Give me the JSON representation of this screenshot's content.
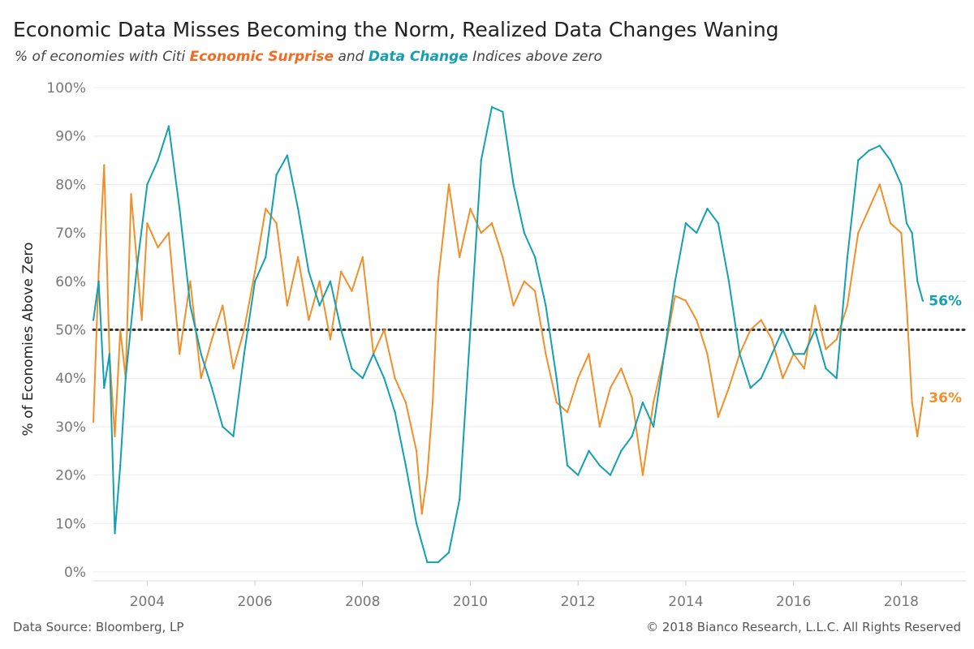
{
  "title": "Economic Data Misses Becoming the Norm, Realized Data Changes Waning",
  "subtitle": {
    "prefix": "% of economies with Citi",
    "series1": "Economic Surprise",
    "middle": "and",
    "series2": "Data Change",
    "suffix": "Indices above zero"
  },
  "footer": {
    "source": "Data Source: Bloomberg, LP",
    "copyright": "© 2018 Bianco Research, L.L.C. All Rights Reserved"
  },
  "colors": {
    "economic_surprise": "#f0902a",
    "data_change": "#14a0b0",
    "subtitle_surprise": "#f26b21",
    "reference_line": "#333333"
  },
  "chart_data": {
    "type": "line",
    "title": "Economic Data Misses Becoming the Norm, Realized Data Changes Waning",
    "xlabel": "",
    "ylabel": "% of Economies Above Zero",
    "xlim": [
      2003.0,
      2019.2
    ],
    "ylim": [
      0,
      100
    ],
    "x_ticks": [
      2004,
      2006,
      2008,
      2010,
      2012,
      2014,
      2016,
      2018
    ],
    "x_tick_labels": [
      "2004",
      "2006",
      "2008",
      "2010",
      "2012",
      "2014",
      "2016",
      "2018"
    ],
    "y_ticks": [
      0,
      10,
      20,
      30,
      40,
      50,
      60,
      70,
      80,
      90,
      100
    ],
    "y_tick_labels": [
      "0%",
      "10%",
      "20%",
      "30%",
      "40%",
      "50%",
      "60%",
      "70%",
      "80%",
      "90%",
      "100%"
    ],
    "reference_line": {
      "y": 50,
      "style": "dotted"
    },
    "grid": "horizontal",
    "end_labels": [
      {
        "series": "Data Change",
        "text": "56%"
      },
      {
        "series": "Economic Surprise",
        "text": "36%"
      }
    ],
    "series": [
      {
        "name": "Economic Surprise",
        "color": "#f0902a",
        "x": [
          2003.0,
          2003.1,
          2003.2,
          2003.3,
          2003.4,
          2003.5,
          2003.6,
          2003.7,
          2003.8,
          2003.9,
          2004.0,
          2004.2,
          2004.4,
          2004.6,
          2004.8,
          2005.0,
          2005.2,
          2005.4,
          2005.6,
          2005.8,
          2006.0,
          2006.2,
          2006.4,
          2006.6,
          2006.8,
          2007.0,
          2007.2,
          2007.4,
          2007.6,
          2007.8,
          2008.0,
          2008.2,
          2008.4,
          2008.6,
          2008.8,
          2009.0,
          2009.1,
          2009.2,
          2009.3,
          2009.4,
          2009.5,
          2009.6,
          2009.8,
          2010.0,
          2010.2,
          2010.4,
          2010.6,
          2010.8,
          2011.0,
          2011.2,
          2011.4,
          2011.6,
          2011.8,
          2012.0,
          2012.2,
          2012.4,
          2012.6,
          2012.8,
          2013.0,
          2013.2,
          2013.4,
          2013.6,
          2013.8,
          2014.0,
          2014.2,
          2014.4,
          2014.6,
          2014.8,
          2015.0,
          2015.2,
          2015.4,
          2015.6,
          2015.8,
          2016.0,
          2016.2,
          2016.4,
          2016.6,
          2016.8,
          2017.0,
          2017.2,
          2017.4,
          2017.6,
          2017.8,
          2018.0,
          2018.1,
          2018.2,
          2018.3,
          2018.4
        ],
        "values": [
          31,
          62,
          84,
          45,
          28,
          50,
          40,
          78,
          65,
          52,
          72,
          67,
          70,
          45,
          60,
          40,
          48,
          55,
          42,
          50,
          62,
          75,
          72,
          55,
          65,
          52,
          60,
          48,
          62,
          58,
          65,
          45,
          50,
          40,
          35,
          25,
          12,
          20,
          35,
          60,
          70,
          80,
          65,
          75,
          70,
          72,
          65,
          55,
          60,
          58,
          45,
          35,
          33,
          40,
          45,
          30,
          38,
          42,
          36,
          20,
          35,
          45,
          57,
          56,
          52,
          45,
          32,
          38,
          45,
          50,
          52,
          48,
          40,
          45,
          42,
          55,
          46,
          48,
          55,
          70,
          75,
          80,
          72,
          70,
          55,
          35,
          28,
          36
        ]
      },
      {
        "name": "Data Change",
        "color": "#14a0b0",
        "x": [
          2003.0,
          2003.1,
          2003.2,
          2003.3,
          2003.4,
          2003.5,
          2003.6,
          2003.8,
          2004.0,
          2004.2,
          2004.4,
          2004.6,
          2004.8,
          2005.0,
          2005.2,
          2005.4,
          2005.6,
          2005.8,
          2006.0,
          2006.2,
          2006.4,
          2006.6,
          2006.8,
          2007.0,
          2007.2,
          2007.4,
          2007.6,
          2007.8,
          2008.0,
          2008.2,
          2008.4,
          2008.6,
          2008.8,
          2009.0,
          2009.2,
          2009.4,
          2009.6,
          2009.8,
          2010.0,
          2010.2,
          2010.4,
          2010.6,
          2010.8,
          2011.0,
          2011.2,
          2011.4,
          2011.6,
          2011.8,
          2012.0,
          2012.2,
          2012.4,
          2012.6,
          2012.8,
          2013.0,
          2013.2,
          2013.4,
          2013.6,
          2013.8,
          2014.0,
          2014.2,
          2014.4,
          2014.6,
          2014.8,
          2015.0,
          2015.2,
          2015.4,
          2015.6,
          2015.8,
          2016.0,
          2016.2,
          2016.4,
          2016.6,
          2016.8,
          2017.0,
          2017.2,
          2017.4,
          2017.6,
          2017.8,
          2018.0,
          2018.1,
          2018.2,
          2018.3,
          2018.4
        ],
        "values": [
          52,
          60,
          38,
          45,
          8,
          22,
          40,
          62,
          80,
          85,
          92,
          75,
          55,
          45,
          38,
          30,
          28,
          45,
          60,
          65,
          82,
          86,
          75,
          62,
          55,
          60,
          50,
          42,
          40,
          45,
          40,
          33,
          22,
          10,
          2,
          2,
          4,
          15,
          50,
          85,
          96,
          95,
          80,
          70,
          65,
          55,
          40,
          22,
          20,
          25,
          22,
          20,
          25,
          28,
          35,
          30,
          45,
          60,
          72,
          70,
          75,
          72,
          60,
          45,
          38,
          40,
          45,
          50,
          45,
          45,
          50,
          42,
          40,
          65,
          85,
          87,
          88,
          85,
          80,
          72,
          70,
          60,
          56
        ]
      }
    ]
  }
}
